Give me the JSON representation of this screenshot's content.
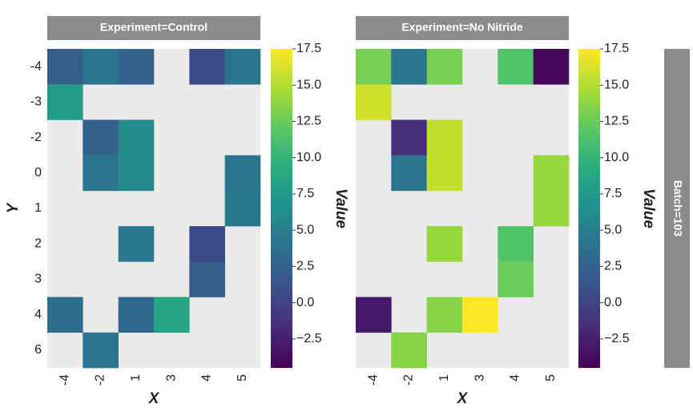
{
  "chart_data": [
    {
      "type": "heatmap",
      "title": "Experiment=Control",
      "x_categories": [
        "-4",
        "-2",
        "1",
        "3",
        "4",
        "5"
      ],
      "y_categories": [
        "-4",
        "-3",
        "-2",
        "0",
        "1",
        "2",
        "3",
        "4",
        "6"
      ],
      "values": [
        [
          2.0,
          4.0,
          2.5,
          null,
          0.5,
          4.0
        ],
        [
          7.5,
          null,
          null,
          null,
          null,
          null
        ],
        [
          null,
          2.5,
          6.0,
          null,
          null,
          null
        ],
        [
          null,
          4.0,
          6.0,
          null,
          null,
          4.0
        ],
        [
          null,
          null,
          null,
          null,
          null,
          4.5
        ],
        [
          null,
          null,
          4.5,
          null,
          0.5,
          null
        ],
        [
          null,
          null,
          null,
          null,
          2.0,
          null
        ],
        [
          3.5,
          null,
          3.0,
          8.5,
          null,
          null
        ],
        [
          null,
          4.0,
          null,
          null,
          null,
          null
        ]
      ],
      "xlabel": "X",
      "ylabel": "Y",
      "colorbar_label": "Value",
      "colormap": "viridis",
      "missing_color": "#eaeaea",
      "clim": [
        -4.5,
        17.5
      ],
      "cticks": [
        {
          "value": -2.5,
          "label": "−2.5"
        },
        {
          "value": 0,
          "label": "0.0"
        },
        2.5,
        {
          "value": 5,
          "label": "5.0"
        },
        7.5,
        {
          "value": 10,
          "label": "10.0"
        },
        12.5,
        {
          "value": 15,
          "label": "15.0"
        },
        17.5
      ]
    },
    {
      "type": "heatmap",
      "title": "Experiment=No Nitride",
      "x_categories": [
        "-4",
        "-2",
        "1",
        "3",
        "4",
        "5"
      ],
      "y_categories": [
        "-4",
        "-3",
        "-2",
        "0",
        "1",
        "2",
        "3",
        "4",
        "6"
      ],
      "values": [
        [
          13.0,
          4.0,
          13.0,
          null,
          11.5,
          -4.0
        ],
        [
          16.0,
          null,
          null,
          null,
          null,
          null
        ],
        [
          null,
          -1.5,
          15.5,
          null,
          null,
          null
        ],
        [
          null,
          4.0,
          15.5,
          null,
          null,
          14.0
        ],
        [
          null,
          null,
          null,
          null,
          null,
          14.0
        ],
        [
          null,
          null,
          14.0,
          null,
          11.5,
          null
        ],
        [
          null,
          null,
          null,
          null,
          12.5,
          null
        ],
        [
          -3.0,
          null,
          13.5,
          17.5,
          null,
          null
        ],
        [
          null,
          13.5,
          null,
          null,
          null,
          null
        ]
      ],
      "xlabel": "X",
      "colorbar_label": "Value",
      "colormap": "viridis",
      "missing_color": "#eaeaea",
      "clim": [
        -4.5,
        17.5
      ],
      "cticks": [
        {
          "value": -2.5,
          "label": "−2.5"
        },
        {
          "value": 0,
          "label": "0.0"
        },
        2.5,
        {
          "value": 5,
          "label": "5.0"
        },
        7.5,
        {
          "value": 10,
          "label": "10.0"
        },
        12.5,
        {
          "value": 15,
          "label": "15.0"
        },
        17.5
      ]
    }
  ],
  "row_label": "Batch=103"
}
